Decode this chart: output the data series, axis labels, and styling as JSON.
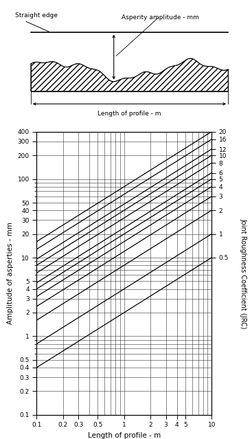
{
  "jrc_values": [
    20,
    16,
    12,
    10,
    8,
    6,
    5,
    4,
    3,
    2,
    1,
    0.5
  ],
  "jrc_labels": [
    "20",
    "16",
    "12",
    "10",
    "8",
    "6",
    "5",
    "4",
    "3",
    "2",
    "1",
    "0.5"
  ],
  "x_lim": [
    0.1,
    10
  ],
  "y_lim": [
    0.1,
    400
  ],
  "x_ticks": [
    0.1,
    0.2,
    0.3,
    0.5,
    1,
    2,
    3,
    4,
    5,
    10
  ],
  "x_tick_labels": [
    "0.1",
    "0.2",
    "0.3",
    "0.5",
    "1",
    "2",
    "3",
    "4",
    "5",
    "10"
  ],
  "y_ticks": [
    0.1,
    0.2,
    0.3,
    0.4,
    0.5,
    1,
    2,
    3,
    4,
    5,
    10,
    20,
    30,
    40,
    50,
    100,
    200,
    300,
    400
  ],
  "y_tick_labels": [
    "0.1",
    "0.2",
    "0.3",
    "0.4",
    "0.5",
    "1",
    "2",
    "3",
    "4",
    "5",
    "10",
    "20",
    "30",
    "40",
    "50",
    "100",
    "200",
    "300",
    "400"
  ],
  "xlabel": "Length of profile - m",
  "ylabel": "Amplitude of asperties - mm",
  "right_ylabel": "Joint Roughness Coefficient (JRC)",
  "background_color": "#ffffff",
  "line_color": "#000000",
  "diagram_title_straight_edge": "Straight edge",
  "diagram_label_amplitude": "Asperity amplitude - mm",
  "diagram_label_length": "Length of profile - m",
  "line_exponent": 0.7,
  "line_scale": 4.0
}
